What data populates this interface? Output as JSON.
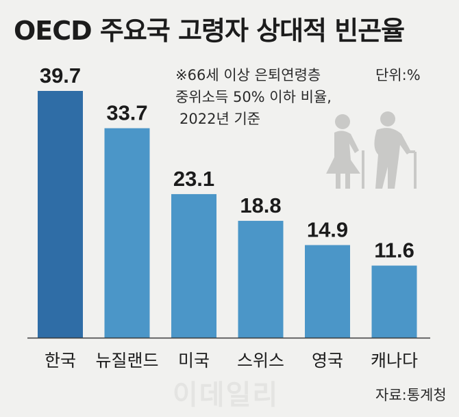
{
  "title": "OECD 주요국 고령자 상대적 빈곤율",
  "note": [
    "※66세 이상 은퇴연령층",
    "중위소득 50% 이하 비율,",
    "2022년 기준"
  ],
  "unit": "단위:%",
  "source": "자료:통계청",
  "watermark": "이데일리",
  "icons": [
    "elderly-couple-icon"
  ],
  "colors": {
    "highlight": "#2f6da6",
    "bar": "#4b96c8",
    "axis": "#3a3a3a"
  },
  "chart_data": {
    "type": "bar",
    "categories": [
      "한국",
      "뉴질랜드",
      "미국",
      "스위스",
      "영국",
      "캐나다"
    ],
    "values": [
      39.7,
      33.7,
      23.1,
      18.8,
      14.9,
      11.6
    ],
    "value_labels": [
      "39.7",
      "33.7",
      "23.1",
      "18.8",
      "14.9",
      "11.6"
    ],
    "ylim": [
      0,
      39.7
    ],
    "highlight_index": 0,
    "grid": false,
    "legend": "none"
  }
}
